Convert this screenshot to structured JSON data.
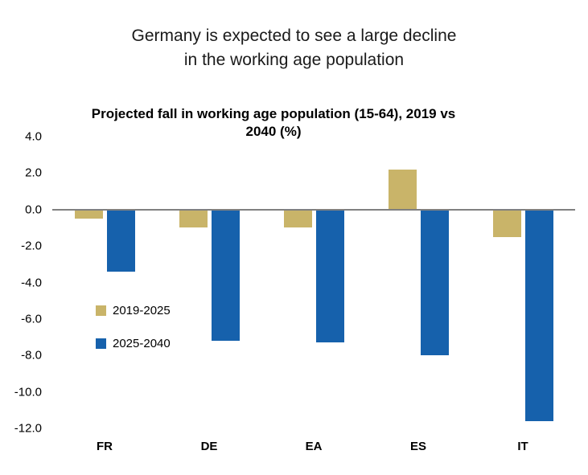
{
  "header": {
    "line1": "Germany is expected to see a large decline",
    "line2": "in the working age population"
  },
  "chart_data": {
    "type": "bar",
    "title": "Projected fall in working age population (15-64), 2019 vs 2040 (%)",
    "title_lines": [
      "Projected fall in working age population (15-64), 2019 vs",
      "2040 (%)"
    ],
    "categories": [
      "FR",
      "DE",
      "EA",
      "ES",
      "IT"
    ],
    "series": [
      {
        "name": "2019-2025",
        "color": "#C9B469",
        "values": [
          -0.5,
          -1.0,
          -1.0,
          2.2,
          -1.5
        ]
      },
      {
        "name": "2025-2040",
        "color": "#1661AC",
        "values": [
          -3.4,
          -7.2,
          -7.3,
          -8.0,
          -11.6
        ]
      }
    ],
    "ylim": [
      -12.0,
      4.0
    ],
    "yticks": [
      4.0,
      2.0,
      0.0,
      -2.0,
      -4.0,
      -6.0,
      -8.0,
      -10.0,
      -12.0
    ],
    "ytick_format": "one-decimal",
    "xlabel": "",
    "ylabel": "",
    "grid": false,
    "legend_position": "inside-left",
    "zero_line_color": "#808080"
  }
}
